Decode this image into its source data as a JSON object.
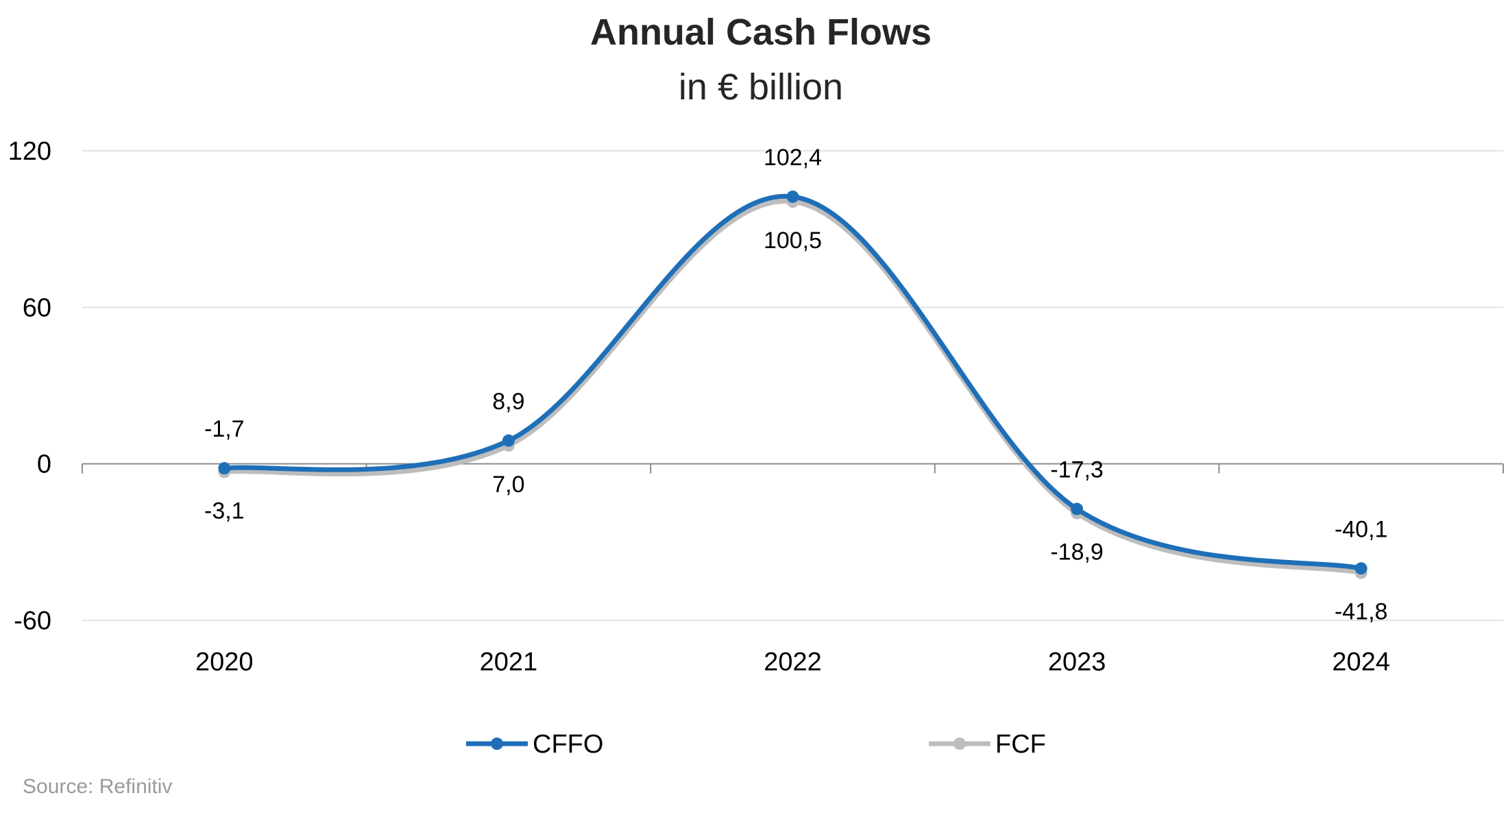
{
  "chart_data": {
    "type": "line",
    "title": "Annual Cash Flows",
    "subtitle": "in € billion",
    "categories": [
      "2020",
      "2021",
      "2022",
      "2023",
      "2024"
    ],
    "series": [
      {
        "name": "CFFO",
        "values": [
          -1.7,
          8.9,
          102.4,
          -17.3,
          -40.1
        ],
        "labels": [
          "-1,7",
          "8,9",
          "102,4",
          "-17,3",
          "-40,1"
        ],
        "color": "#1f6fb8"
      },
      {
        "name": "FCF",
        "values": [
          -3.1,
          7.0,
          100.5,
          -18.9,
          -41.8
        ],
        "labels": [
          "-3,1",
          "7,0",
          "100,5",
          "-18,9",
          "-41,8"
        ],
        "color": "#bdbdbd"
      }
    ],
    "ylim": [
      -60,
      120
    ],
    "yticks": [
      -60,
      0,
      60,
      120
    ],
    "ytick_labels": [
      "-60",
      "0",
      "60",
      "120"
    ],
    "xlabel": "",
    "ylabel": "",
    "grid": true,
    "smooth": true,
    "legend": "bottom",
    "source": "Source: Refinitiv"
  }
}
